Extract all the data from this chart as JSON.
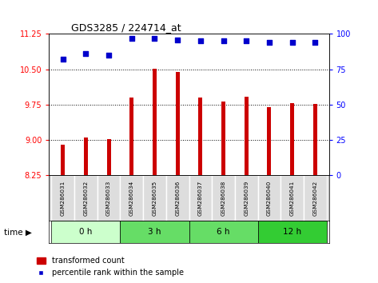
{
  "title": "GDS3285 / 224714_at",
  "samples": [
    "GSM286031",
    "GSM286032",
    "GSM286033",
    "GSM286034",
    "GSM286035",
    "GSM286036",
    "GSM286037",
    "GSM286038",
    "GSM286039",
    "GSM286040",
    "GSM286041",
    "GSM286042"
  ],
  "bar_values": [
    8.9,
    9.06,
    9.02,
    9.9,
    10.52,
    10.44,
    9.9,
    9.82,
    9.92,
    9.7,
    9.78,
    9.76
  ],
  "percentile_values": [
    82,
    86,
    85,
    97,
    97,
    96,
    95,
    95,
    95,
    94,
    94,
    94
  ],
  "bar_color": "#cc0000",
  "dot_color": "#0000cc",
  "ylim_left": [
    8.25,
    11.25
  ],
  "ylim_right": [
    0,
    100
  ],
  "yticks_left": [
    8.25,
    9.0,
    9.75,
    10.5,
    11.25
  ],
  "yticks_right": [
    0,
    25,
    50,
    75,
    100
  ],
  "grid_lines": [
    9.0,
    9.75,
    10.5
  ],
  "time_groups": [
    {
      "label": "0 h",
      "start": 0,
      "end": 3
    },
    {
      "label": "3 h",
      "start": 3,
      "end": 6
    },
    {
      "label": "6 h",
      "start": 6,
      "end": 9
    },
    {
      "label": "12 h",
      "start": 9,
      "end": 12
    }
  ],
  "time_group_colors": [
    "#ccffcc",
    "#66dd66",
    "#66dd66",
    "#33cc33"
  ],
  "legend_bar_label": "transformed count",
  "legend_dot_label": "percentile rank within the sample"
}
